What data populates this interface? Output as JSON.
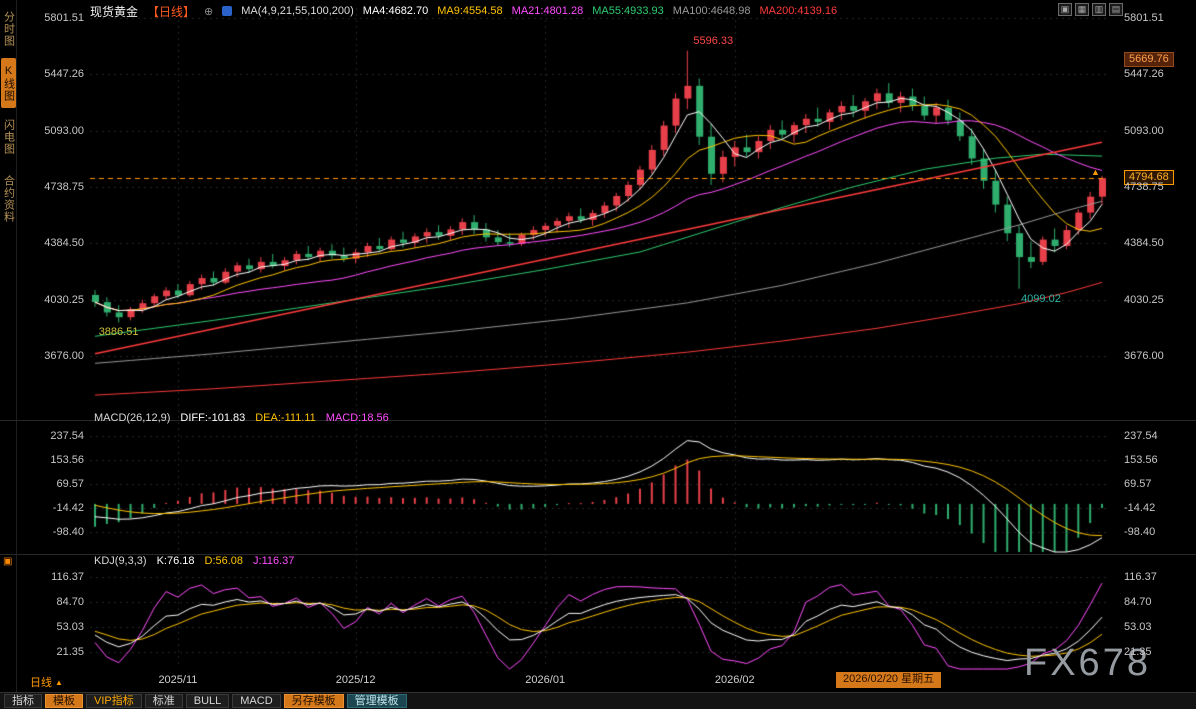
{
  "header": {
    "title": "现货黄金",
    "period": "【日线】",
    "plus_icon": "⊕",
    "ma_params": "MA(4,9,21,55,100,200)",
    "ma_values": [
      {
        "label": "MA4:4682.70",
        "color": "#ffffff"
      },
      {
        "label": "MA9:4554.58",
        "color": "#ffc400"
      },
      {
        "label": "MA21:4801.28",
        "color": "#ff4dff"
      },
      {
        "label": "MA55:4933.93",
        "color": "#2ecc71"
      },
      {
        "label": "MA100:4648.98",
        "color": "#9a9a9a"
      },
      {
        "label": "MA200:4139.16",
        "color": "#ff3b3b"
      }
    ],
    "window_icons": [
      {
        "name": "layout-single-icon",
        "glyph": "▣"
      },
      {
        "name": "layout-grid-icon",
        "glyph": "▦"
      },
      {
        "name": "layout-columns-icon",
        "glyph": "▥"
      },
      {
        "name": "layout-rows-icon",
        "glyph": "▤"
      }
    ]
  },
  "sidebar": {
    "items": [
      {
        "label": "分时图",
        "active": false
      },
      {
        "label": "K线图",
        "active": true
      },
      {
        "label": "闪电图",
        "active": false
      },
      {
        "label": "合约资料",
        "active": false
      }
    ]
  },
  "price_axis": {
    "upper_badge": "5669.76",
    "current_badge": "4794.68",
    "arrow": "▲"
  },
  "annotations": {
    "high": "5596.33",
    "low1": "3886.51",
    "low2": "4099.02"
  },
  "indicators": {
    "panel_icon": "▣",
    "macd": {
      "name": "MACD(26,12,9)",
      "diff": "DIFF:-101.83",
      "dea": "DEA:-111.11",
      "macd": "MACD:18.56"
    },
    "kdj": {
      "name": "KDJ(9,3,3)",
      "k": "K:76.18",
      "d": "D:56.08",
      "j": "J:116.37"
    }
  },
  "footer": {
    "period_selector": "日线",
    "period_arrow": "▲",
    "date_badge": "2026/02/20 星期五",
    "watermark": "FX678",
    "tabs": [
      {
        "label": "指标",
        "style": "plain"
      },
      {
        "label": "模板",
        "style": "active"
      },
      {
        "label": "VIP指标",
        "style": "vip"
      },
      {
        "label": "标准",
        "style": "plain"
      },
      {
        "label": "BULL",
        "style": "plain"
      },
      {
        "label": "MACD",
        "style": "plain"
      },
      {
        "label": "另存模板",
        "style": "active"
      },
      {
        "label": "管理模板",
        "style": "teal"
      }
    ]
  },
  "colors": {
    "up": "#e8404a",
    "down": "#2fae6e",
    "ma4": "#ffffff",
    "ma9": "#ffc400",
    "ma21": "#ff4dff",
    "ma55": "#2ecc71",
    "ma100": "#9a9a9a",
    "ma200": "#ff3b3b",
    "accent": "#ff9900",
    "diff": "#ffffff",
    "dea": "#ffc400",
    "k": "#ffffff",
    "d": "#ffc400",
    "j": "#ff4dff"
  },
  "chart_data": {
    "type": "candlestick",
    "title": "现货黄金 日线",
    "y_ticks": [
      5801.51,
      5447.26,
      5093.0,
      4738.75,
      4384.5,
      4030.25,
      3676.0
    ],
    "x_ticks": [
      {
        "index": 7,
        "label": "2025/11"
      },
      {
        "index": 22,
        "label": "2025/12"
      },
      {
        "index": 38,
        "label": "2026/01"
      },
      {
        "index": 54,
        "label": "2026/02"
      }
    ],
    "last_price": 4794.68,
    "high_marker": {
      "index": 50,
      "price": 5596.33
    },
    "low_marker_1": {
      "index": 2,
      "price": 3886.51
    },
    "low_marker_2": {
      "index": 78,
      "price": 4099.02
    },
    "candles": [
      [
        4060,
        4090,
        3985,
        4015
      ],
      [
        4015,
        4045,
        3925,
        3950
      ],
      [
        3950,
        3995,
        3886.51,
        3920
      ],
      [
        3920,
        3985,
        3900,
        3970
      ],
      [
        3970,
        4030,
        3948,
        4008
      ],
      [
        4008,
        4068,
        3986,
        4052
      ],
      [
        4052,
        4108,
        4028,
        4088
      ],
      [
        4088,
        4128,
        4040,
        4058
      ],
      [
        4058,
        4148,
        4048,
        4128
      ],
      [
        4128,
        4188,
        4094,
        4166
      ],
      [
        4166,
        4208,
        4118,
        4138
      ],
      [
        4138,
        4228,
        4128,
        4206
      ],
      [
        4206,
        4265,
        4172,
        4246
      ],
      [
        4246,
        4288,
        4198,
        4222
      ],
      [
        4222,
        4298,
        4200,
        4268
      ],
      [
        4268,
        4318,
        4228,
        4242
      ],
      [
        4242,
        4298,
        4212,
        4278
      ],
      [
        4278,
        4338,
        4252,
        4318
      ],
      [
        4318,
        4368,
        4278,
        4298
      ],
      [
        4298,
        4358,
        4268,
        4338
      ],
      [
        4338,
        4378,
        4288,
        4308
      ],
      [
        4308,
        4358,
        4268,
        4288
      ],
      [
        4288,
        4348,
        4258,
        4328
      ],
      [
        4328,
        4388,
        4298,
        4368
      ],
      [
        4368,
        4418,
        4328,
        4348
      ],
      [
        4348,
        4428,
        4338,
        4408
      ],
      [
        4408,
        4458,
        4358,
        4388
      ],
      [
        4388,
        4448,
        4355,
        4428
      ],
      [
        4428,
        4478,
        4388,
        4455
      ],
      [
        4455,
        4498,
        4408,
        4432
      ],
      [
        4432,
        4492,
        4402,
        4472
      ],
      [
        4472,
        4542,
        4438,
        4518
      ],
      [
        4518,
        4562,
        4442,
        4472
      ],
      [
        4472,
        4512,
        4395,
        4422
      ],
      [
        4422,
        4468,
        4368,
        4392
      ],
      [
        4392,
        4448,
        4362,
        4382
      ],
      [
        4382,
        4452,
        4368,
        4438
      ],
      [
        4438,
        4492,
        4405,
        4468
      ],
      [
        4468,
        4515,
        4428,
        4495
      ],
      [
        4495,
        4545,
        4452,
        4525
      ],
      [
        4525,
        4578,
        4482,
        4555
      ],
      [
        4555,
        4605,
        4512,
        4532
      ],
      [
        4532,
        4595,
        4495,
        4575
      ],
      [
        4575,
        4645,
        4545,
        4622
      ],
      [
        4622,
        4702,
        4585,
        4682
      ],
      [
        4682,
        4775,
        4645,
        4752
      ],
      [
        4752,
        4872,
        4722,
        4848
      ],
      [
        4848,
        5002,
        4822,
        4972
      ],
      [
        4972,
        5155,
        4935,
        5125
      ],
      [
        5125,
        5328,
        5078,
        5295
      ],
      [
        5295,
        5596.33,
        5228,
        5375
      ],
      [
        5375,
        5422,
        5002,
        5055
      ],
      [
        5055,
        5138,
        4752,
        4822
      ],
      [
        4822,
        4968,
        4768,
        4928
      ],
      [
        4928,
        5028,
        4868,
        4988
      ],
      [
        4988,
        5068,
        4928,
        4958
      ],
      [
        4958,
        5058,
        4918,
        5028
      ],
      [
        5028,
        5128,
        4978,
        5098
      ],
      [
        5098,
        5158,
        5038,
        5068
      ],
      [
        5068,
        5148,
        5018,
        5128
      ],
      [
        5128,
        5198,
        5078,
        5168
      ],
      [
        5168,
        5238,
        5118,
        5148
      ],
      [
        5148,
        5228,
        5098,
        5208
      ],
      [
        5208,
        5278,
        5158,
        5248
      ],
      [
        5248,
        5318,
        5178,
        5218
      ],
      [
        5218,
        5298,
        5168,
        5278
      ],
      [
        5278,
        5358,
        5228,
        5328
      ],
      [
        5328,
        5392,
        5238,
        5268
      ],
      [
        5268,
        5338,
        5208,
        5308
      ],
      [
        5308,
        5358,
        5218,
        5248
      ],
      [
        5248,
        5308,
        5158,
        5188
      ],
      [
        5188,
        5268,
        5138,
        5238
      ],
      [
        5238,
        5288,
        5128,
        5158
      ],
      [
        5158,
        5208,
        5028,
        5058
      ],
      [
        5058,
        5108,
        4878,
        4918
      ],
      [
        4918,
        4978,
        4728,
        4778
      ],
      [
        4778,
        4848,
        4578,
        4628
      ],
      [
        4628,
        4678,
        4398,
        4448
      ],
      [
        4448,
        4498,
        4099.02,
        4298
      ],
      [
        4298,
        4398,
        4228,
        4268
      ],
      [
        4268,
        4428,
        4248,
        4408
      ],
      [
        4408,
        4478,
        4328,
        4368
      ],
      [
        4368,
        4498,
        4348,
        4468
      ],
      [
        4468,
        4598,
        4438,
        4578
      ],
      [
        4578,
        4708,
        4538,
        4678
      ],
      [
        4678,
        4808,
        4628,
        4794.68
      ]
    ],
    "ma_overlays": {
      "ma55_points": [
        [
          0,
          3800
        ],
        [
          10,
          3900
        ],
        [
          20,
          4010
        ],
        [
          30,
          4120
        ],
        [
          38,
          4220
        ],
        [
          46,
          4330
        ],
        [
          52,
          4470
        ],
        [
          58,
          4610
        ],
        [
          64,
          4740
        ],
        [
          70,
          4850
        ],
        [
          76,
          4920
        ],
        [
          80,
          4945
        ],
        [
          85,
          4933
        ]
      ],
      "ma100_points": [
        [
          0,
          3630
        ],
        [
          10,
          3690
        ],
        [
          20,
          3760
        ],
        [
          30,
          3830
        ],
        [
          40,
          3910
        ],
        [
          50,
          4010
        ],
        [
          58,
          4120
        ],
        [
          66,
          4260
        ],
        [
          72,
          4380
        ],
        [
          78,
          4500
        ],
        [
          82,
          4590
        ],
        [
          85,
          4649
        ]
      ],
      "ma200_points": [
        [
          0,
          3430
        ],
        [
          10,
          3470
        ],
        [
          20,
          3520
        ],
        [
          30,
          3570
        ],
        [
          40,
          3630
        ],
        [
          50,
          3700
        ],
        [
          58,
          3770
        ],
        [
          66,
          3850
        ],
        [
          72,
          3925
        ],
        [
          78,
          4005
        ],
        [
          82,
          4075
        ],
        [
          85,
          4139
        ]
      ]
    },
    "trendline": {
      "from": [
        0,
        3690
      ],
      "to": [
        85,
        5020
      ]
    },
    "macd": {
      "ticks": [
        237.54,
        153.56,
        69.57,
        -14.42,
        -98.4
      ]
    },
    "kdj": {
      "ticks": [
        116.37,
        84.7,
        53.03,
        21.35
      ]
    }
  }
}
